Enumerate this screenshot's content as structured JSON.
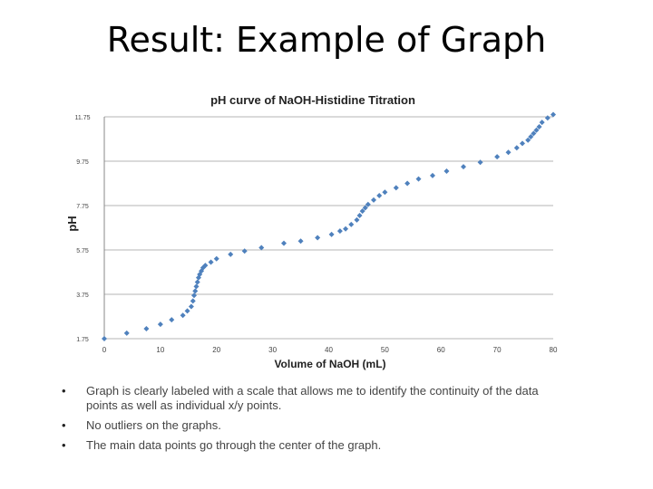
{
  "slide": {
    "title": "Result: Example of Graph",
    "bullets": [
      "Graph is clearly labeled with a scale that allows me to identify the continuity of the data points as well as individual x/y points.",
      "No outliers on the graphs.",
      "The  main data points go through the center of the graph."
    ]
  },
  "chart_data": {
    "type": "scatter",
    "title": "pH curve of NaOH-Histidine Titration",
    "xlabel": "Volume of NaOH (mL)",
    "ylabel": "pH",
    "xlim": [
      0,
      80
    ],
    "ylim": [
      1.75,
      11.75
    ],
    "xticks": [
      "0",
      "10",
      "20",
      "30",
      "40",
      "50",
      "60",
      "70",
      "80"
    ],
    "yticks": [
      "1.75",
      "3.75",
      "5.75",
      "7.75",
      "9.75",
      "11.75"
    ],
    "grid": "horizontal",
    "marker_color": "#4F81BD",
    "series": [
      {
        "x": [
          0,
          4,
          7.5,
          10,
          12,
          14,
          14.8,
          15.5,
          15.8,
          16,
          16.2,
          16.4,
          16.6,
          16.8,
          17,
          17.3,
          17.6,
          18,
          19,
          20,
          22.5,
          25,
          28,
          32,
          35,
          38,
          40.5,
          42,
          43,
          44,
          45,
          45.5,
          46,
          46.5,
          47,
          48,
          49,
          50,
          52,
          54,
          56,
          58.5,
          61,
          64,
          67,
          70,
          72,
          73.5,
          74.5,
          75.5,
          76,
          76.5,
          77,
          77.5,
          78,
          79,
          80
        ],
        "y": [
          1.75,
          2.0,
          2.2,
          2.4,
          2.6,
          2.8,
          3.0,
          3.2,
          3.45,
          3.7,
          3.9,
          4.1,
          4.3,
          4.5,
          4.65,
          4.8,
          4.95,
          5.05,
          5.2,
          5.35,
          5.55,
          5.7,
          5.85,
          6.05,
          6.15,
          6.3,
          6.45,
          6.6,
          6.7,
          6.9,
          7.1,
          7.3,
          7.5,
          7.65,
          7.8,
          8.0,
          8.2,
          8.35,
          8.55,
          8.75,
          8.95,
          9.1,
          9.3,
          9.5,
          9.7,
          9.95,
          10.15,
          10.35,
          10.55,
          10.7,
          10.85,
          11.0,
          11.15,
          11.3,
          11.5,
          11.7,
          11.85
        ]
      }
    ]
  }
}
